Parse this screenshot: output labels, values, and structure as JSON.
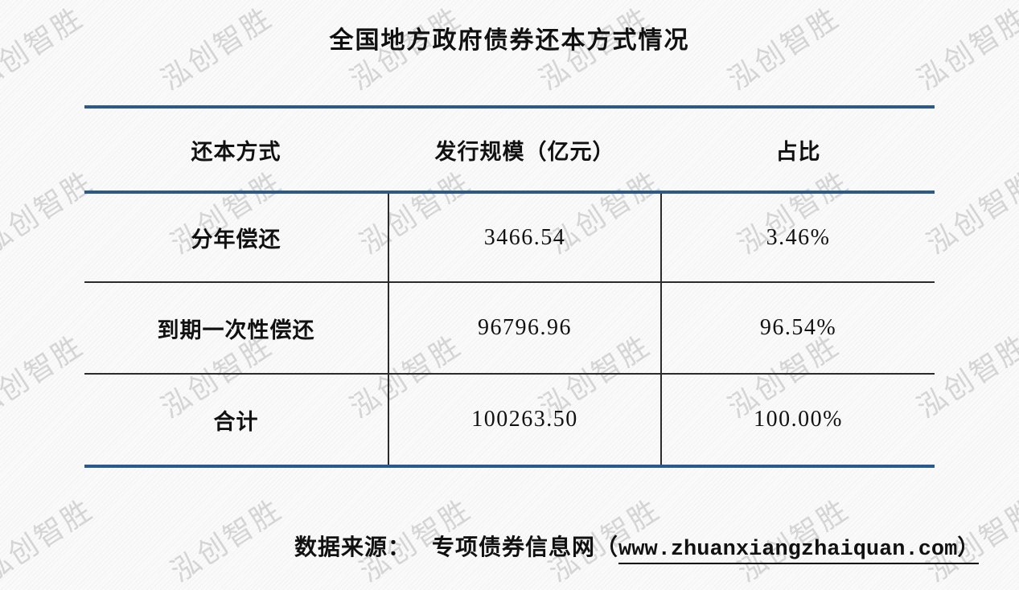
{
  "title": "全国地方政府债券还本方式情况",
  "watermark": {
    "text": "泓创智胜",
    "color": "rgba(140,140,140,0.32)"
  },
  "table": {
    "headers": {
      "method": "还本方式",
      "scale": "发行规模（亿元）",
      "share": "占比"
    },
    "rows": [
      {
        "method": "分年偿还",
        "scale": "3466.54",
        "share": "3.46%"
      },
      {
        "method": "到期一次性偿还",
        "scale": "96796.96",
        "share": "96.54%"
      },
      {
        "method": "合计",
        "scale": "100263.50",
        "share": "100.00%"
      }
    ]
  },
  "footer": {
    "source_label": "数据来源：",
    "source_name": "专项债券信息网",
    "open_paren": "（",
    "url": "www.zhuanxiangzhaiquan.com",
    "close_paren": "）"
  },
  "colors": {
    "accent_blue": "#2a5a8b",
    "thin_line": "#2b2b2b",
    "text": "#111111",
    "watermark_gray": "#d9d9d9"
  },
  "chart_data": {
    "type": "table",
    "title": "全国地方政府债券还本方式情况",
    "columns": [
      "还本方式",
      "发行规模（亿元）",
      "占比"
    ],
    "rows": [
      [
        "分年偿还",
        3466.54,
        "3.46%"
      ],
      [
        "到期一次性偿还",
        96796.96,
        "96.54%"
      ],
      [
        "合计",
        100263.5,
        "100.00%"
      ]
    ],
    "source": "数据来源： 专项债券信息网（www.zhuanxiangzhaiquan.com）",
    "layout": "booktabs-style table, thick navy top/header/bottom rules, thin black row separators, vertical dividers in body only"
  }
}
